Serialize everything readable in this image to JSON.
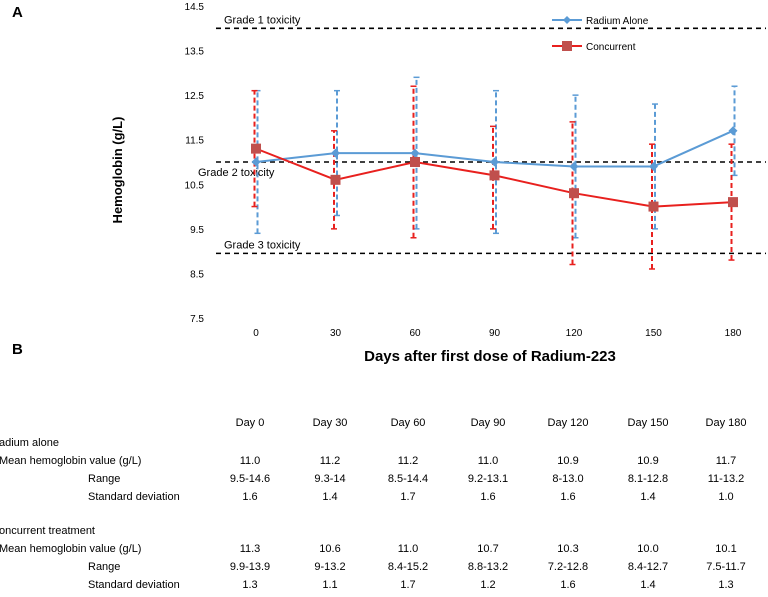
{
  "panel_a_label": "A",
  "panel_b_label": "B",
  "chart_data": {
    "type": "line",
    "xlabel": "Days after first dose of Radium-223",
    "ylabel": "Hemoglobin (g/L)",
    "x": [
      0,
      30,
      60,
      90,
      120,
      150,
      180
    ],
    "ylim": [
      7.5,
      14.5
    ],
    "yticks": [
      "7.5",
      "8.5",
      "9.5",
      "10.5",
      "11.5",
      "12.5",
      "13.5",
      "14.5"
    ],
    "xticks": [
      "0",
      "30",
      "60",
      "90",
      "120",
      "150",
      "180"
    ],
    "legend_position": "top-right",
    "series": [
      {
        "name": "Radium Alone",
        "color": "#5b9bd5",
        "marker": "diamond",
        "dash": "dashed error bars",
        "values": [
          11.0,
          11.2,
          11.2,
          11.0,
          10.9,
          10.9,
          11.7
        ],
        "error_low": [
          9.4,
          9.8,
          9.5,
          9.4,
          9.3,
          9.5,
          10.7
        ],
        "error_high": [
          12.6,
          12.6,
          12.9,
          12.6,
          12.5,
          12.3,
          12.7
        ]
      },
      {
        "name": "Concurrent",
        "color": "#e8201e",
        "marker": "square",
        "values": [
          11.3,
          10.6,
          11.0,
          10.7,
          10.3,
          10.0,
          10.1
        ],
        "error_low": [
          10.0,
          9.5,
          9.3,
          9.5,
          8.7,
          8.6,
          8.8
        ],
        "error_high": [
          12.6,
          11.7,
          12.7,
          11.8,
          11.9,
          11.4,
          11.4
        ]
      }
    ],
    "thresholds": [
      {
        "label": "Grade 1 toxicity",
        "value": 14.0
      },
      {
        "label": "Grade 2 toxicity",
        "value": 11.0
      },
      {
        "label": "Grade 3 toxicity",
        "value": 8.95
      }
    ]
  },
  "table": {
    "columns": [
      "Day 0",
      "Day 30",
      "Day 60",
      "Day 90",
      "Day 120",
      "Day 150",
      "Day 180"
    ],
    "rows": [
      {
        "label": "adium alone",
        "indent": false,
        "values": []
      },
      {
        "label": "Mean hemoglobin value (g/L)",
        "indent": false,
        "values": [
          "11.0",
          "11.2",
          "11.2",
          "11.0",
          "10.9",
          "10.9",
          "11.7"
        ]
      },
      {
        "label": "Range",
        "indent": true,
        "values": [
          "9.5-14.6",
          "9.3-14",
          "8.5-14.4",
          "9.2-13.1",
          "8-13.0",
          "8.1-12.8",
          "11-13.2"
        ]
      },
      {
        "label": "Standard deviation",
        "indent": true,
        "values": [
          "1.6",
          "1.4",
          "1.7",
          "1.6",
          "1.6",
          "1.4",
          "1.0"
        ]
      },
      {
        "label": "",
        "indent": false,
        "values": []
      },
      {
        "label": "oncurrent treatment",
        "indent": false,
        "values": []
      },
      {
        "label": "Mean hemoglobin value (g/L)",
        "indent": false,
        "values": [
          "11.3",
          "10.6",
          "11.0",
          "10.7",
          "10.3",
          "10.0",
          "10.1"
        ]
      },
      {
        "label": "Range",
        "indent": true,
        "values": [
          "9.9-13.9",
          "9-13.2",
          "8.4-15.2",
          "8.8-13.2",
          "7.2-12.8",
          "8.4-12.7",
          "7.5-11.7"
        ]
      },
      {
        "label": "Standard deviation",
        "indent": true,
        "values": [
          "1.3",
          "1.1",
          "1.7",
          "1.2",
          "1.6",
          "1.4",
          "1.3"
        ]
      }
    ]
  }
}
